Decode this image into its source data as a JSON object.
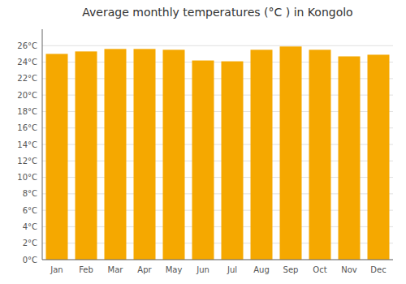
{
  "chart_data": {
    "type": "bar",
    "title": "Average monthly temperatures (°C ) in Kongolo",
    "categories": [
      "Jan",
      "Feb",
      "Mar",
      "Apr",
      "May",
      "Jun",
      "Jul",
      "Aug",
      "Sep",
      "Oct",
      "Nov",
      "Dec"
    ],
    "values": [
      25.0,
      25.3,
      25.6,
      25.6,
      25.5,
      24.2,
      24.1,
      25.5,
      25.9,
      25.5,
      24.7,
      24.9
    ],
    "color": "#F5A800",
    "ylim": [
      0,
      28
    ],
    "yticks": [
      {
        "value": 0,
        "label": "0°C"
      },
      {
        "value": 2,
        "label": "2°C"
      },
      {
        "value": 4,
        "label": "4°C"
      },
      {
        "value": 6,
        "label": "6°C"
      },
      {
        "value": 8,
        "label": "8°C"
      },
      {
        "value": 10,
        "label": "10°C"
      },
      {
        "value": 12,
        "label": "12°C"
      },
      {
        "value": 14,
        "label": "14°C"
      },
      {
        "value": 16,
        "label": "16°C"
      },
      {
        "value": 18,
        "label": "18°C"
      },
      {
        "value": 20,
        "label": "20°C"
      },
      {
        "value": 22,
        "label": "22°C"
      },
      {
        "value": 24,
        "label": "24°C"
      },
      {
        "value": 26,
        "label": "26°C"
      }
    ],
    "grid": true
  }
}
